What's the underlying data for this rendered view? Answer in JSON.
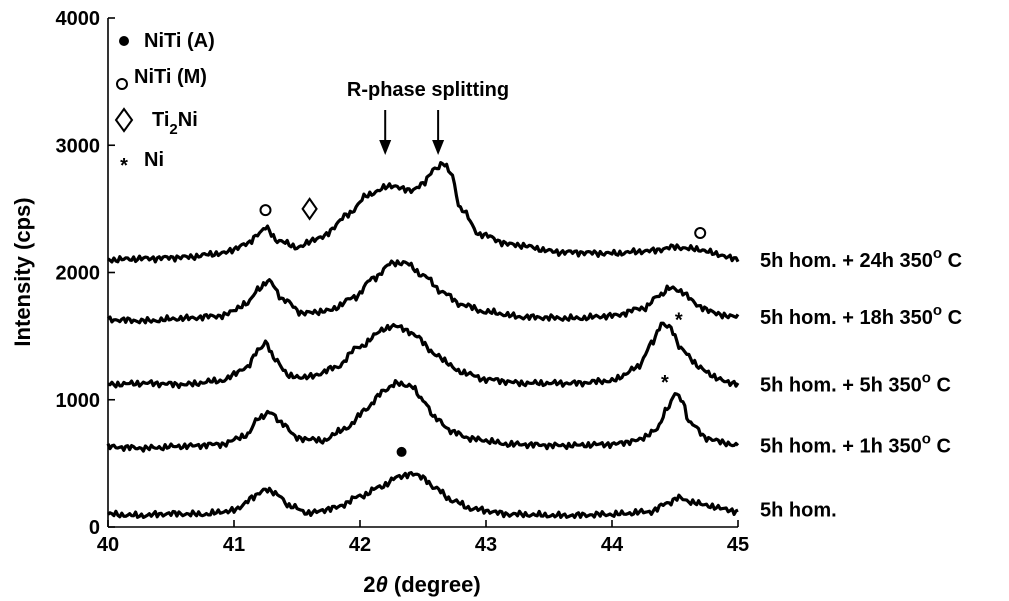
{
  "chart_data": {
    "type": "line",
    "xlabel_greek": "θ",
    "xlabel_prefix": "2",
    "xlabel_suffix": " (degree)",
    "ylabel": "Intensity (cps)",
    "xlim": [
      40,
      45
    ],
    "ylim": [
      0,
      4000
    ],
    "x_ticks": [
      "40",
      "41",
      "42",
      "43",
      "44",
      "45"
    ],
    "y_ticks": [
      "0",
      "1000",
      "2000",
      "3000",
      "4000"
    ],
    "grid": false,
    "legend": {
      "placement": "top-left",
      "entries": [
        {
          "marker": "filled-circle",
          "label": "NiTi (A)"
        },
        {
          "marker": "open-circle",
          "label": "NiTi (M)"
        },
        {
          "marker": "open-diamond",
          "label_main": "Ti",
          "label_sub": "2",
          "label_tail": "Ni"
        },
        {
          "marker": "asterisk",
          "label": "Ni"
        }
      ]
    },
    "annotations": {
      "r_phase_text": "R-phase splitting",
      "r_phase_arrows_x": [
        42.2,
        42.62
      ],
      "markers": [
        {
          "symbol": "filled-circle",
          "x": 42.33,
          "y": 590
        },
        {
          "symbol": "open-circle",
          "x": 41.25,
          "y": 2490
        },
        {
          "symbol": "open-diamond",
          "x": 41.6,
          "y": 2500
        },
        {
          "symbol": "open-circle",
          "x": 44.7,
          "y": 2310
        },
        {
          "symbol": "asterisk",
          "x": 44.53,
          "y": 1670
        },
        {
          "symbol": "asterisk",
          "x": 44.42,
          "y": 1180
        }
      ]
    },
    "series": [
      {
        "name": "5h hom.",
        "label_main": "5h hom.",
        "x": [
          40.0,
          40.25,
          40.5,
          40.75,
          41.0,
          41.15,
          41.25,
          41.35,
          41.45,
          41.6,
          41.8,
          42.0,
          42.15,
          42.3,
          42.4,
          42.5,
          42.6,
          42.75,
          42.9,
          43.2,
          43.6,
          44.0,
          44.3,
          44.45,
          44.52,
          44.62,
          44.75,
          44.9,
          45.0
        ],
        "y": [
          100,
          90,
          105,
          100,
          130,
          230,
          300,
          250,
          160,
          110,
          150,
          240,
          310,
          390,
          420,
          390,
          300,
          200,
          140,
          100,
          90,
          100,
          120,
          190,
          230,
          200,
          170,
          140,
          120
        ]
      },
      {
        "name": "5h hom. + 1h 350 C",
        "label_main": "5h hom. + 1h 350",
        "label_sup": "o",
        "label_tail": " C",
        "x": [
          40.0,
          40.3,
          40.6,
          40.9,
          41.1,
          41.2,
          41.28,
          41.38,
          41.5,
          41.7,
          41.9,
          42.05,
          42.2,
          42.3,
          42.4,
          42.5,
          42.6,
          42.75,
          42.9,
          43.2,
          43.6,
          44.0,
          44.2,
          44.35,
          44.45,
          44.5,
          44.55,
          44.62,
          44.75,
          44.9,
          45.0
        ],
        "y": [
          630,
          620,
          635,
          650,
          720,
          860,
          900,
          820,
          700,
          680,
          780,
          930,
          1080,
          1130,
          1110,
          1000,
          850,
          740,
          690,
          650,
          640,
          650,
          680,
          760,
          950,
          1050,
          1000,
          820,
          700,
          660,
          640
        ]
      },
      {
        "name": "5h hom. + 5h 350 C",
        "label_main": "5h hom. + 5h 350",
        "label_sup": "o",
        "label_tail": " C",
        "x": [
          40.0,
          40.3,
          40.6,
          40.9,
          41.1,
          41.2,
          41.25,
          41.32,
          41.45,
          41.6,
          41.8,
          42.0,
          42.2,
          42.3,
          42.45,
          42.6,
          42.8,
          43.0,
          43.3,
          43.7,
          44.0,
          44.2,
          44.32,
          44.4,
          44.45,
          44.55,
          44.7,
          44.85,
          45.0
        ],
        "y": [
          1120,
          1130,
          1120,
          1150,
          1250,
          1400,
          1450,
          1320,
          1180,
          1180,
          1250,
          1420,
          1560,
          1580,
          1500,
          1350,
          1220,
          1160,
          1130,
          1130,
          1150,
          1250,
          1450,
          1600,
          1580,
          1400,
          1250,
          1160,
          1120
        ]
      },
      {
        "name": "5h hom. + 18h 350 C",
        "label_main": "5h hom. + 18h 350",
        "label_sup": "o",
        "label_tail": " C",
        "x": [
          40.0,
          40.3,
          40.6,
          40.9,
          41.1,
          41.2,
          41.28,
          41.4,
          41.55,
          41.75,
          41.95,
          42.1,
          42.25,
          42.35,
          42.5,
          42.65,
          42.8,
          43.0,
          43.3,
          43.7,
          44.0,
          44.25,
          44.38,
          44.45,
          44.55,
          44.7,
          44.85,
          45.0
        ],
        "y": [
          1630,
          1620,
          1640,
          1660,
          1750,
          1880,
          1930,
          1780,
          1680,
          1700,
          1800,
          1950,
          2070,
          2080,
          1980,
          1850,
          1750,
          1690,
          1650,
          1640,
          1660,
          1720,
          1820,
          1880,
          1850,
          1730,
          1670,
          1650
        ]
      },
      {
        "name": "5h hom. + 24h 350 C",
        "label_main": "5h hom. + 24h 350",
        "label_sup": "o",
        "label_tail": " C",
        "x": [
          40.0,
          40.3,
          40.6,
          40.9,
          41.1,
          41.2,
          41.25,
          41.35,
          41.5,
          41.7,
          41.9,
          42.05,
          42.2,
          42.28,
          42.4,
          42.5,
          42.6,
          42.66,
          42.72,
          42.8,
          42.95,
          43.2,
          43.6,
          44.0,
          44.3,
          44.5,
          44.7,
          44.85,
          45.0
        ],
        "y": [
          2100,
          2110,
          2120,
          2150,
          2220,
          2310,
          2350,
          2250,
          2200,
          2280,
          2450,
          2600,
          2670,
          2680,
          2640,
          2700,
          2820,
          2860,
          2780,
          2500,
          2300,
          2220,
          2160,
          2150,
          2170,
          2200,
          2180,
          2140,
          2100
        ]
      }
    ]
  }
}
